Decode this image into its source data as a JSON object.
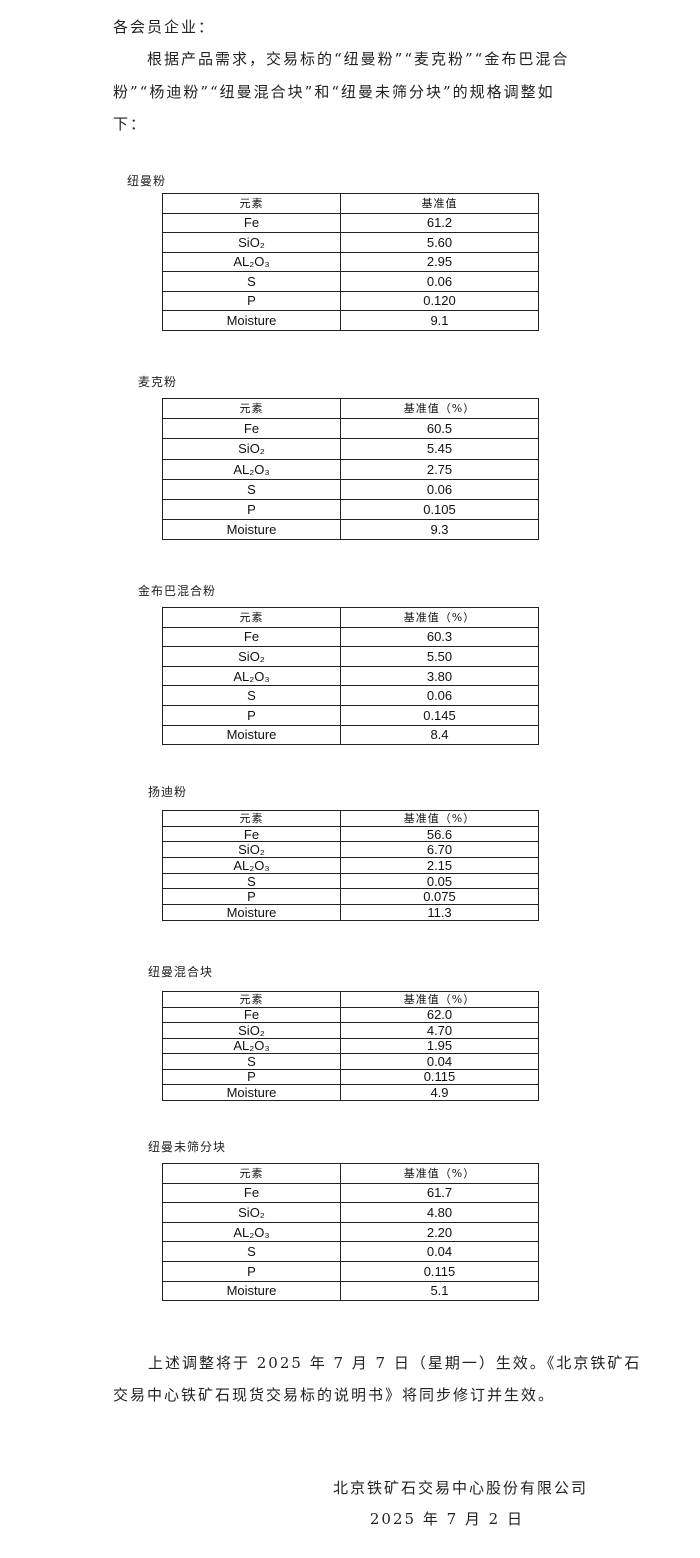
{
  "notice": {
    "salutation": "各会员企业：",
    "intro_lines": [
      "根据产品需求，交易标的“纽曼粉”“麦克粉”“金布巴混合",
      "粉”“杨迪粉”“纽曼混合块”和“纽曼未筛分块”的规格调整如",
      "下："
    ],
    "closing_lines": [
      "上述调整将于 2025 年 7 月 7 日（星期一）生效。《北京铁矿石",
      "交易中心铁矿石现货交易标的说明书》将同步修订并生效。"
    ],
    "signature": "北京铁矿石交易中心股份有限公司",
    "date": "2025 年 7 月 2 日"
  },
  "tables": [
    {
      "title": "纽曼粉",
      "headers": [
        "元素",
        "基准值"
      ],
      "rows": [
        [
          "Fe",
          "61.2"
        ],
        [
          "SiO₂",
          "5.60"
        ],
        [
          "AL₂O₃",
          "2.95"
        ],
        [
          "S",
          "0.06"
        ],
        [
          "P",
          "0.120"
        ],
        [
          "Moisture",
          "9.1"
        ]
      ]
    },
    {
      "title": "麦克粉",
      "headers": [
        "元素",
        "基准值（%）"
      ],
      "rows": [
        [
          "Fe",
          "60.5"
        ],
        [
          "SiO₂",
          "5.45"
        ],
        [
          "AL₂O₃",
          "2.75"
        ],
        [
          "S",
          "0.06"
        ],
        [
          "P",
          "0.105"
        ],
        [
          "Moisture",
          "9.3"
        ]
      ]
    },
    {
      "title": "金布巴混合粉",
      "headers": [
        "元素",
        "基准值（%）"
      ],
      "rows": [
        [
          "Fe",
          "60.3"
        ],
        [
          "SiO₂",
          "5.50"
        ],
        [
          "AL₂O₃",
          "3.80"
        ],
        [
          "S",
          "0.06"
        ],
        [
          "P",
          "0.145"
        ],
        [
          "Moisture",
          "8.4"
        ]
      ]
    },
    {
      "title": "扬迪粉",
      "headers": [
        "元素",
        "基准值（%）"
      ],
      "rows": [
        [
          "Fe",
          "56.6"
        ],
        [
          "SiO₂",
          "6.70"
        ],
        [
          "AL₂O₃",
          "2.15"
        ],
        [
          "S",
          "0.05"
        ],
        [
          "P",
          "0.075"
        ],
        [
          "Moisture",
          "11.3"
        ]
      ]
    },
    {
      "title": "纽曼混合块",
      "headers": [
        "元素",
        "基准值（%）"
      ],
      "rows": [
        [
          "Fe",
          "62.0"
        ],
        [
          "SiO₂",
          "4.70"
        ],
        [
          "AL₂O₃",
          "1.95"
        ],
        [
          "S",
          "0.04"
        ],
        [
          "P",
          "0.115"
        ],
        [
          "Moisture",
          "4.9"
        ]
      ]
    },
    {
      "title": "纽曼未筛分块",
      "headers": [
        "元素",
        "基准值（%）"
      ],
      "rows": [
        [
          "Fe",
          "61.7"
        ],
        [
          "SiO₂",
          "4.80"
        ],
        [
          "AL₂O₃",
          "2.20"
        ],
        [
          "S",
          "0.04"
        ],
        [
          "P",
          "0.115"
        ],
        [
          "Moisture",
          "5.1"
        ]
      ]
    }
  ]
}
